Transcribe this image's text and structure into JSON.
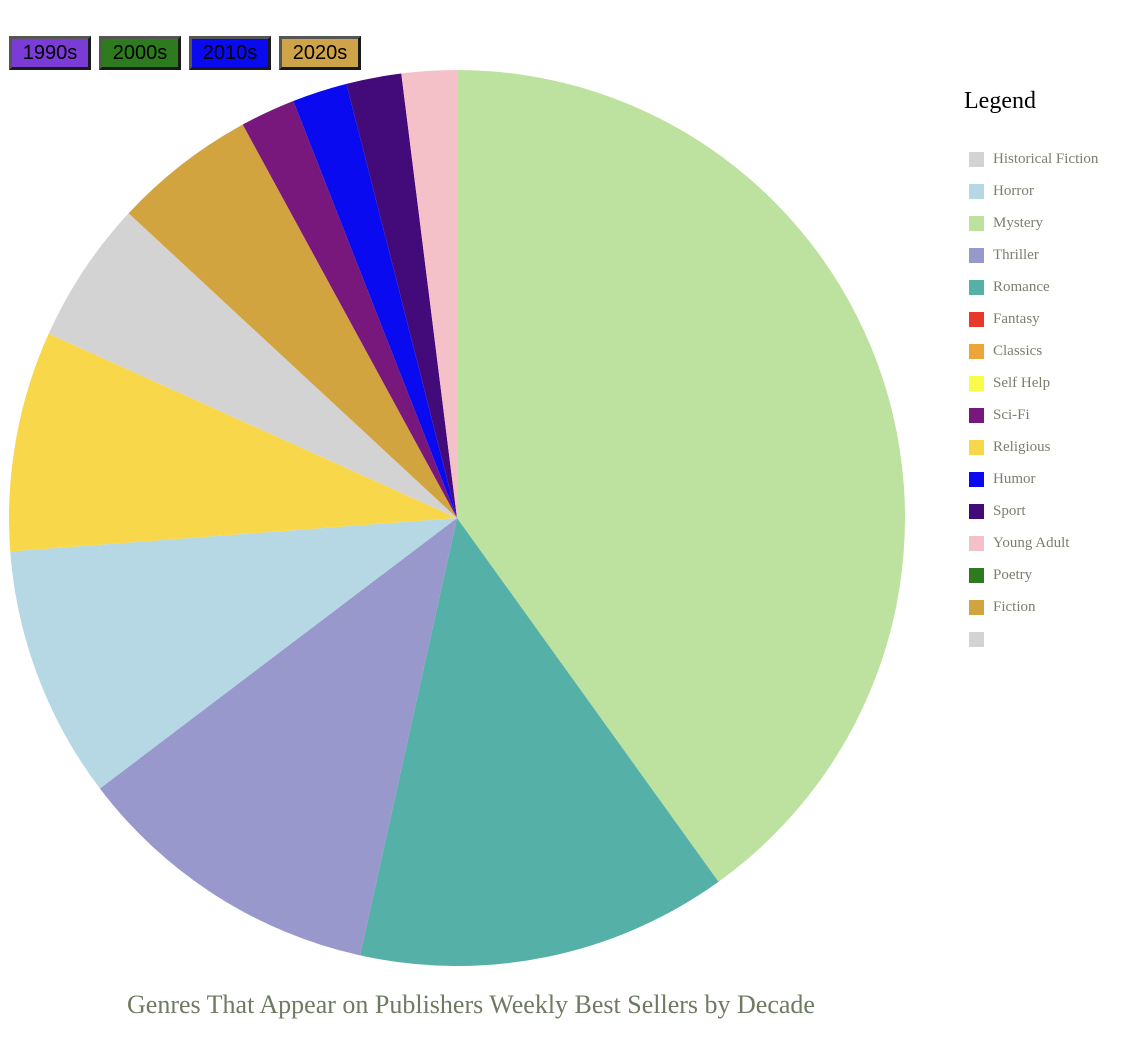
{
  "decades": [
    {
      "label": "1990s",
      "color": "#7a3bd6"
    },
    {
      "label": "2000s",
      "color": "#2e7a1e"
    },
    {
      "label": "2010s",
      "color": "#0a0aee"
    },
    {
      "label": "2020s",
      "color": "#cfa347"
    }
  ],
  "legend": {
    "title": "Legend",
    "items": [
      {
        "label": "Historical Fiction",
        "color": "#d3d3d3"
      },
      {
        "label": "Horror",
        "color": "#b5d8e4"
      },
      {
        "label": "Mystery",
        "color": "#bde19f"
      },
      {
        "label": "Thriller",
        "color": "#9898cc"
      },
      {
        "label": "Romance",
        "color": "#55b0a8"
      },
      {
        "label": "Fantasy",
        "color": "#e8372b"
      },
      {
        "label": "Classics",
        "color": "#eda43a"
      },
      {
        "label": "Self Help",
        "color": "#fbfb4a"
      },
      {
        "label": "Sci-Fi",
        "color": "#78177c"
      },
      {
        "label": "Religious",
        "color": "#f9d74a"
      },
      {
        "label": "Humor",
        "color": "#0a0af0"
      },
      {
        "label": "Sport",
        "color": "#430a7a"
      },
      {
        "label": "Young Adult",
        "color": "#f4c1c8"
      },
      {
        "label": "Poetry",
        "color": "#2e7a1e"
      },
      {
        "label": "Fiction",
        "color": "#d2a440"
      },
      {
        "label": "",
        "color": "#d3d3d3"
      }
    ]
  },
  "chart_data": {
    "type": "pie",
    "title": "Genres That Appear on Publishers Weekly Best Sellers by Decade",
    "start_angle_deg": 0,
    "direction": "clockwise",
    "slices": [
      {
        "label": "Mystery",
        "value": 40.4,
        "color": "#bde19f"
      },
      {
        "label": "Romance",
        "value": 13.5,
        "color": "#55b0a8"
      },
      {
        "label": "Thriller",
        "value": 11.3,
        "color": "#9898cc"
      },
      {
        "label": "Horror",
        "value": 9.2,
        "color": "#b5d8e4"
      },
      {
        "label": "Religious",
        "value": 8.0,
        "color": "#f9d74a"
      },
      {
        "label": "Historical Fiction",
        "value": 5.2,
        "color": "#d3d3d3"
      },
      {
        "label": "Fiction",
        "value": 5.2,
        "color": "#d2a440"
      },
      {
        "label": "Sci-Fi",
        "value": 2.0,
        "color": "#78177c"
      },
      {
        "label": "Humor",
        "value": 2.0,
        "color": "#0a0af0"
      },
      {
        "label": "Sport",
        "value": 2.0,
        "color": "#430a7a"
      },
      {
        "label": "Young Adult",
        "value": 2.0,
        "color": "#f4c1c8"
      }
    ]
  }
}
